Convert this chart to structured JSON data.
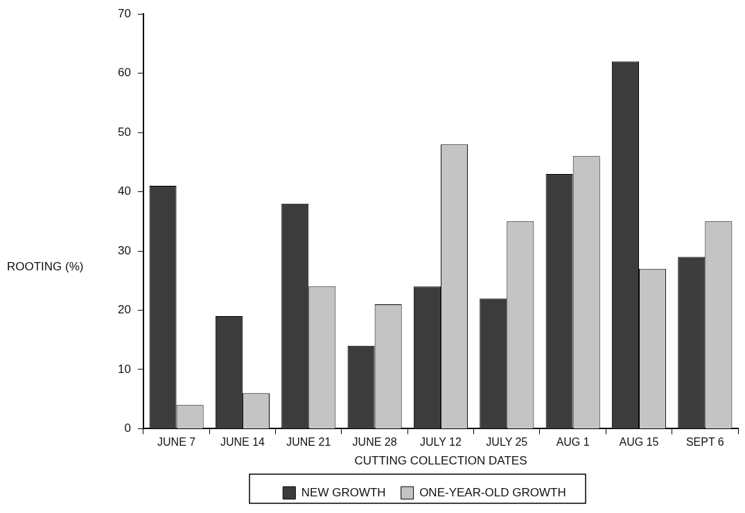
{
  "chart_data": {
    "type": "bar",
    "xlabel": "CUTTING COLLECTION DATES",
    "ylabel": "ROOTING (%)",
    "categories": [
      "JUNE 7",
      "JUNE 14",
      "JUNE 21",
      "JUNE 28",
      "JULY 12",
      "JULY 25",
      "AUG 1",
      "AUG 15",
      "SEPT 6"
    ],
    "series": [
      {
        "name": "NEW GROWTH",
        "color": "#3c3c3c",
        "values": [
          41,
          19,
          38,
          14,
          24,
          22,
          43,
          62,
          29
        ]
      },
      {
        "name": "ONE-YEAR-OLD GROWTH",
        "color": "#c4c4c4",
        "values": [
          4,
          6,
          24,
          21,
          48,
          35,
          46,
          27,
          35
        ]
      }
    ],
    "ylim": [
      0,
      70
    ],
    "yticks": [
      0,
      10,
      20,
      30,
      40,
      50,
      60,
      70
    ],
    "grid": false,
    "legend": "bottom"
  }
}
